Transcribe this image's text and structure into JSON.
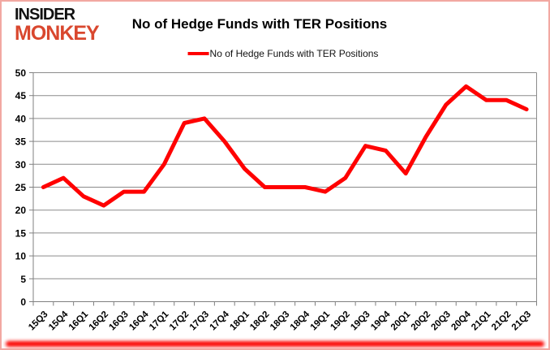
{
  "header": {
    "logo_line1": "INSIDER",
    "logo_line2": "MONKEY",
    "title": "No of Hedge Funds with TER Positions"
  },
  "legend": {
    "label": "No of Hedge Funds with TER Positions"
  },
  "colors": {
    "series": "#ff0000",
    "logo_red": "#d9472e",
    "grid": "#8c8c8c",
    "axis": "#808080",
    "tick": "#808080",
    "text": "#000000",
    "frame_border": "#f2a8a2",
    "bottom_bar": "#fb0300"
  },
  "chart_data": {
    "type": "line",
    "title": "No of Hedge Funds with TER Positions",
    "series": [
      {
        "name": "No of Hedge Funds with TER Positions",
        "values": [
          25,
          27,
          23,
          21,
          24,
          24,
          30,
          39,
          40,
          35,
          29,
          25,
          25,
          25,
          24,
          27,
          34,
          33,
          28,
          36,
          43,
          47,
          44,
          44,
          42
        ]
      }
    ],
    "categories": [
      "15Q3",
      "15Q4",
      "16Q1",
      "16Q2",
      "16Q3",
      "16Q4",
      "17Q1",
      "17Q2",
      "17Q3",
      "17Q4",
      "18Q1",
      "18Q2",
      "18Q3",
      "18Q4",
      "19Q1",
      "19Q2",
      "19Q3",
      "19Q4",
      "20Q1",
      "20Q2",
      "20Q3",
      "20Q4",
      "21Q1",
      "21Q2",
      "21Q3"
    ],
    "ylim": [
      0,
      50
    ],
    "ytick_step": 5,
    "grid": true,
    "legend_position": "top"
  }
}
